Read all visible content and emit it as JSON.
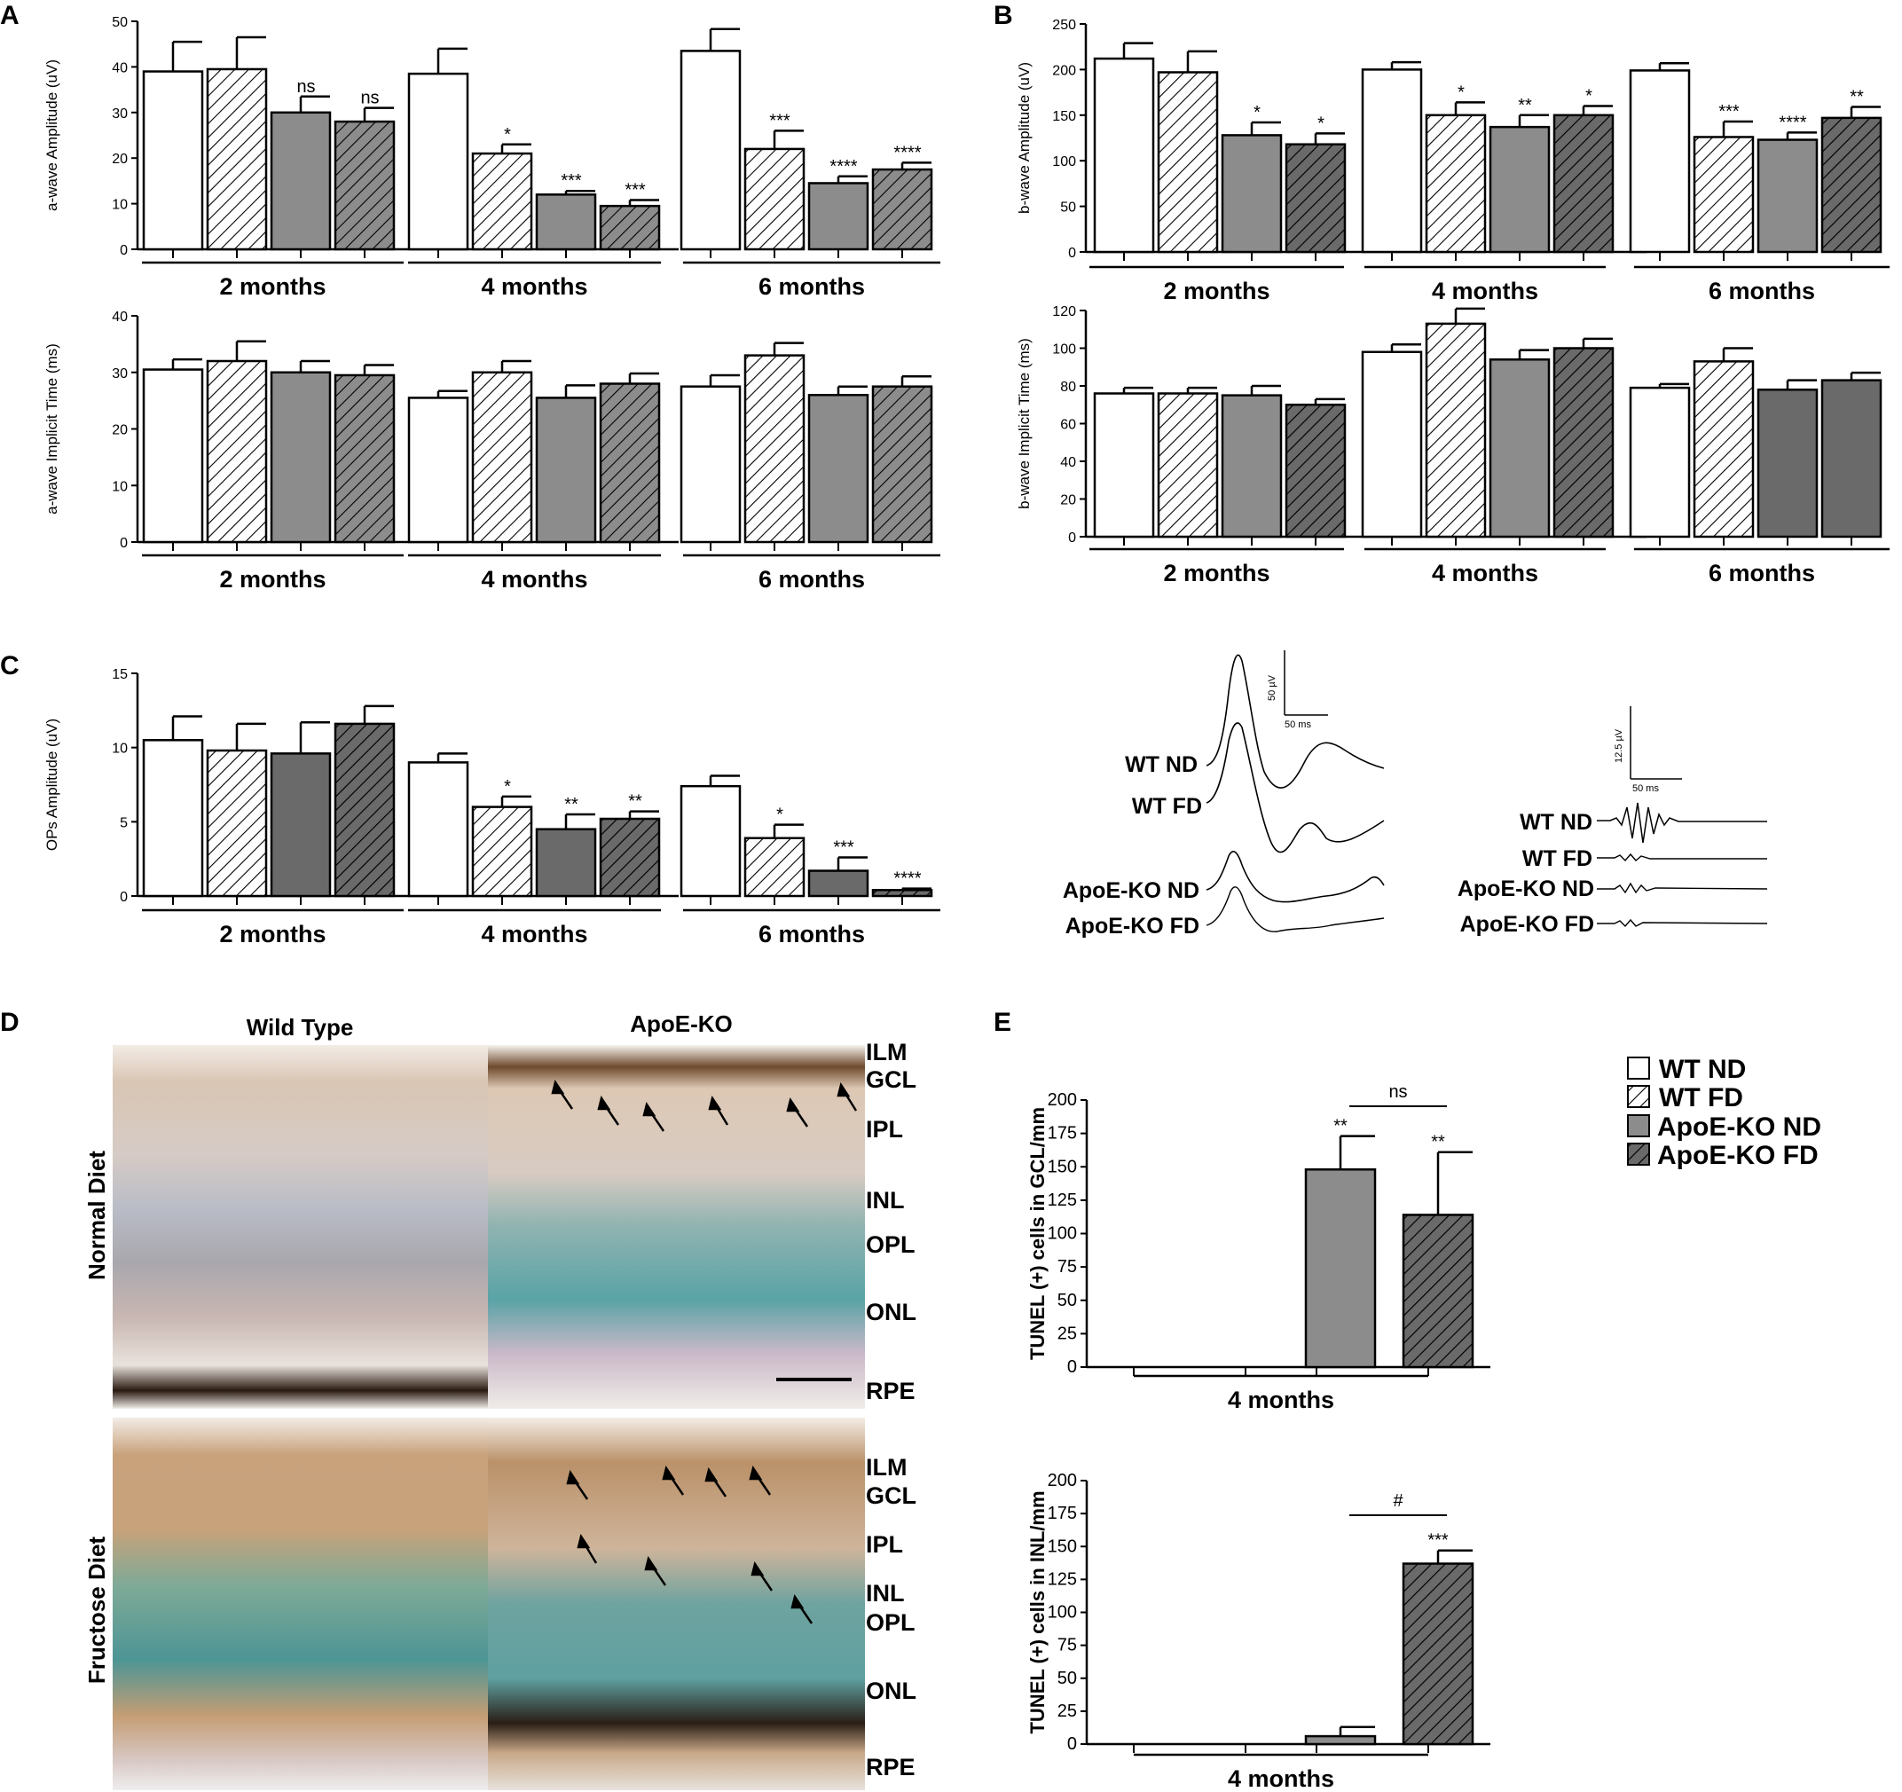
{
  "legend": [
    {
      "label": "WT ND",
      "pattern": "white"
    },
    {
      "label": "WT FD",
      "pattern": "hatch-white"
    },
    {
      "label": "ApoE-KO ND",
      "pattern": "gray"
    },
    {
      "label": "ApoE-KO FD",
      "pattern": "hatch-gray"
    }
  ],
  "colors": {
    "white": "#ffffff",
    "gray": "#8c8c8c",
    "dark": "#6a6a6a",
    "outline": "#000000"
  },
  "panels": {
    "A": "A",
    "B": "B",
    "C": "C",
    "D": "D",
    "E": "E"
  },
  "chart_data": [
    {
      "id": "A-top",
      "type": "bar",
      "ylabel": "a-wave Amplitude (uV)",
      "ylim": [
        0,
        50
      ],
      "yticks": [
        0,
        10,
        20,
        30,
        40,
        50
      ],
      "categories": [
        "2 months",
        "4 months",
        "6 months"
      ],
      "series": [
        {
          "name": "WT ND",
          "values": [
            39,
            38.5,
            43.5
          ],
          "errors": [
            6.5,
            5.5,
            4.8
          ],
          "sig": [
            "",
            "",
            ""
          ]
        },
        {
          "name": "WT FD",
          "values": [
            39.5,
            21,
            22
          ],
          "errors": [
            7,
            2,
            4
          ],
          "sig": [
            "",
            "*",
            "***"
          ]
        },
        {
          "name": "ApoE-KO ND",
          "values": [
            30,
            12,
            14.5
          ],
          "errors": [
            3.5,
            0.8,
            1.5
          ],
          "sig": [
            "ns",
            "***",
            "****"
          ]
        },
        {
          "name": "ApoE-KO FD",
          "values": [
            28,
            9.5,
            17.5
          ],
          "errors": [
            3,
            1.3,
            1.5
          ],
          "sig": [
            "ns",
            "***",
            "****"
          ]
        }
      ]
    },
    {
      "id": "A-bottom",
      "type": "bar",
      "ylabel": "a-wave Implicit Time (ms)",
      "ylim": [
        0,
        40
      ],
      "yticks": [
        0,
        10,
        20,
        30,
        40
      ],
      "categories": [
        "2 months",
        "4 months",
        "6 months"
      ],
      "series": [
        {
          "name": "WT ND",
          "values": [
            30.5,
            25.5,
            27.5
          ],
          "errors": [
            1.8,
            1.2,
            2
          ]
        },
        {
          "name": "WT FD",
          "values": [
            32,
            30,
            33
          ],
          "errors": [
            3.5,
            2,
            2.2
          ]
        },
        {
          "name": "ApoE-KO ND",
          "values": [
            30,
            25.5,
            26
          ],
          "errors": [
            2,
            2.2,
            1.5
          ]
        },
        {
          "name": "ApoE-KO FD",
          "values": [
            29.5,
            28,
            27.5
          ],
          "errors": [
            1.8,
            1.8,
            1.8
          ]
        }
      ]
    },
    {
      "id": "B-top",
      "type": "bar",
      "ylabel": "b-wave Amplitude (uV)",
      "ylim": [
        0,
        250
      ],
      "yticks": [
        0,
        50,
        100,
        150,
        200,
        250
      ],
      "categories": [
        "2 months",
        "4 months",
        "6 months"
      ],
      "series": [
        {
          "name": "WT ND",
          "values": [
            212,
            200,
            199
          ],
          "errors": [
            17,
            8,
            8
          ],
          "sig": [
            "",
            "",
            ""
          ]
        },
        {
          "name": "WT FD",
          "values": [
            197,
            150,
            126
          ],
          "errors": [
            23,
            14,
            17
          ],
          "sig": [
            "",
            "*",
            "***"
          ]
        },
        {
          "name": "ApoE-KO ND",
          "values": [
            128,
            137,
            123
          ],
          "errors": [
            14,
            13,
            8
          ],
          "sig": [
            "*",
            "**",
            "****"
          ]
        },
        {
          "name": "ApoE-KO FD",
          "values": [
            118,
            150,
            147
          ],
          "errors": [
            12,
            10,
            12
          ],
          "sig": [
            "*",
            "*",
            "**"
          ]
        }
      ]
    },
    {
      "id": "B-bottom",
      "type": "bar",
      "ylabel": "b-wave Implicit Time (ms)",
      "ylim": [
        0,
        120
      ],
      "yticks": [
        0,
        20,
        40,
        60,
        80,
        100,
        120
      ],
      "categories": [
        "2 months",
        "4 months",
        "6 months"
      ],
      "series": [
        {
          "name": "WT ND",
          "values": [
            76,
            98,
            79
          ],
          "errors": [
            3,
            4,
            2
          ]
        },
        {
          "name": "WT FD",
          "values": [
            76,
            113,
            93
          ],
          "errors": [
            3,
            8,
            7
          ]
        },
        {
          "name": "ApoE-KO ND",
          "values": [
            75,
            94,
            78
          ],
          "errors": [
            5,
            5,
            5
          ]
        },
        {
          "name": "ApoE-KO FD",
          "values": [
            70,
            100,
            83
          ],
          "errors": [
            3,
            5,
            4
          ]
        }
      ]
    },
    {
      "id": "C",
      "type": "bar",
      "ylabel": "OPs Amplitude (uV)",
      "ylim": [
        0,
        15
      ],
      "yticks": [
        0,
        5,
        10,
        15
      ],
      "categories": [
        "2 months",
        "4 months",
        "6 months"
      ],
      "series": [
        {
          "name": "WT ND",
          "values": [
            10.5,
            9,
            7.4
          ],
          "errors": [
            1.6,
            0.6,
            0.7
          ],
          "sig": [
            "",
            "",
            ""
          ]
        },
        {
          "name": "WT FD",
          "values": [
            9.8,
            6,
            3.9
          ],
          "errors": [
            1.8,
            0.7,
            0.9
          ],
          "sig": [
            "",
            "*",
            "*"
          ]
        },
        {
          "name": "ApoE-KO ND",
          "values": [
            9.6,
            4.5,
            1.7
          ],
          "errors": [
            2.1,
            1,
            0.9
          ],
          "sig": [
            "",
            "**",
            "***"
          ]
        },
        {
          "name": "ApoE-KO FD",
          "values": [
            11.6,
            5.2,
            0.4
          ],
          "errors": [
            1.2,
            0.5,
            0.1
          ],
          "sig": [
            "",
            "**",
            "****"
          ]
        }
      ]
    },
    {
      "id": "E-top",
      "type": "bar",
      "ylabel": "TUNEL (+) cells in GCL/mm",
      "ylim": [
        0,
        200
      ],
      "yticks": [
        0,
        25,
        50,
        75,
        100,
        125,
        150,
        175,
        200
      ],
      "categories": [
        "4 months"
      ],
      "series": [
        {
          "name": "WT ND",
          "values": [
            0
          ],
          "errors": [
            0
          ],
          "sig": [
            ""
          ]
        },
        {
          "name": "WT FD",
          "values": [
            0
          ],
          "errors": [
            0
          ],
          "sig": [
            ""
          ]
        },
        {
          "name": "ApoE-KO ND",
          "values": [
            148
          ],
          "errors": [
            25
          ],
          "sig": [
            "**"
          ]
        },
        {
          "name": "ApoE-KO FD",
          "values": [
            114
          ],
          "errors": [
            47
          ],
          "sig": [
            "**"
          ]
        }
      ],
      "bracket": "ns"
    },
    {
      "id": "E-bottom",
      "type": "bar",
      "ylabel": "TUNEL (+) cells in INL/mm",
      "ylim": [
        0,
        200
      ],
      "yticks": [
        0,
        25,
        50,
        75,
        100,
        125,
        150,
        175,
        200
      ],
      "categories": [
        "4 months"
      ],
      "series": [
        {
          "name": "WT ND",
          "values": [
            0
          ],
          "errors": [
            0
          ],
          "sig": [
            ""
          ]
        },
        {
          "name": "WT FD",
          "values": [
            0
          ],
          "errors": [
            0
          ],
          "sig": [
            ""
          ]
        },
        {
          "name": "ApoE-KO ND",
          "values": [
            6
          ],
          "errors": [
            7
          ],
          "sig": [
            ""
          ]
        },
        {
          "name": "ApoE-KO FD",
          "values": [
            137
          ],
          "errors": [
            10
          ],
          "sig": [
            "***"
          ]
        }
      ],
      "bracket": "#"
    }
  ],
  "traces": {
    "bwave": {
      "labels": [
        "WT ND",
        "WT FD",
        "ApoE-KO ND",
        "ApoE-KO FD"
      ],
      "scale_y": "50 µV",
      "scale_x": "50 ms"
    },
    "ops": {
      "labels": [
        "WT ND",
        "WT FD",
        "ApoE-KO ND",
        "ApoE-KO FD"
      ],
      "scale_y": "12.5 µV",
      "scale_x": "50 ms"
    }
  },
  "histology": {
    "columns": [
      "Wild Type",
      "ApoE-KO"
    ],
    "rows": [
      "Normal Diet",
      "Fructose Diet"
    ],
    "layers_top": [
      "ILM",
      "GCL",
      "IPL",
      "INL",
      "OPL",
      "ONL",
      "RPE"
    ],
    "layers_bottom": [
      "ILM",
      "GCL",
      "IPL",
      "INL",
      "OPL",
      "ONL",
      "RPE"
    ]
  }
}
